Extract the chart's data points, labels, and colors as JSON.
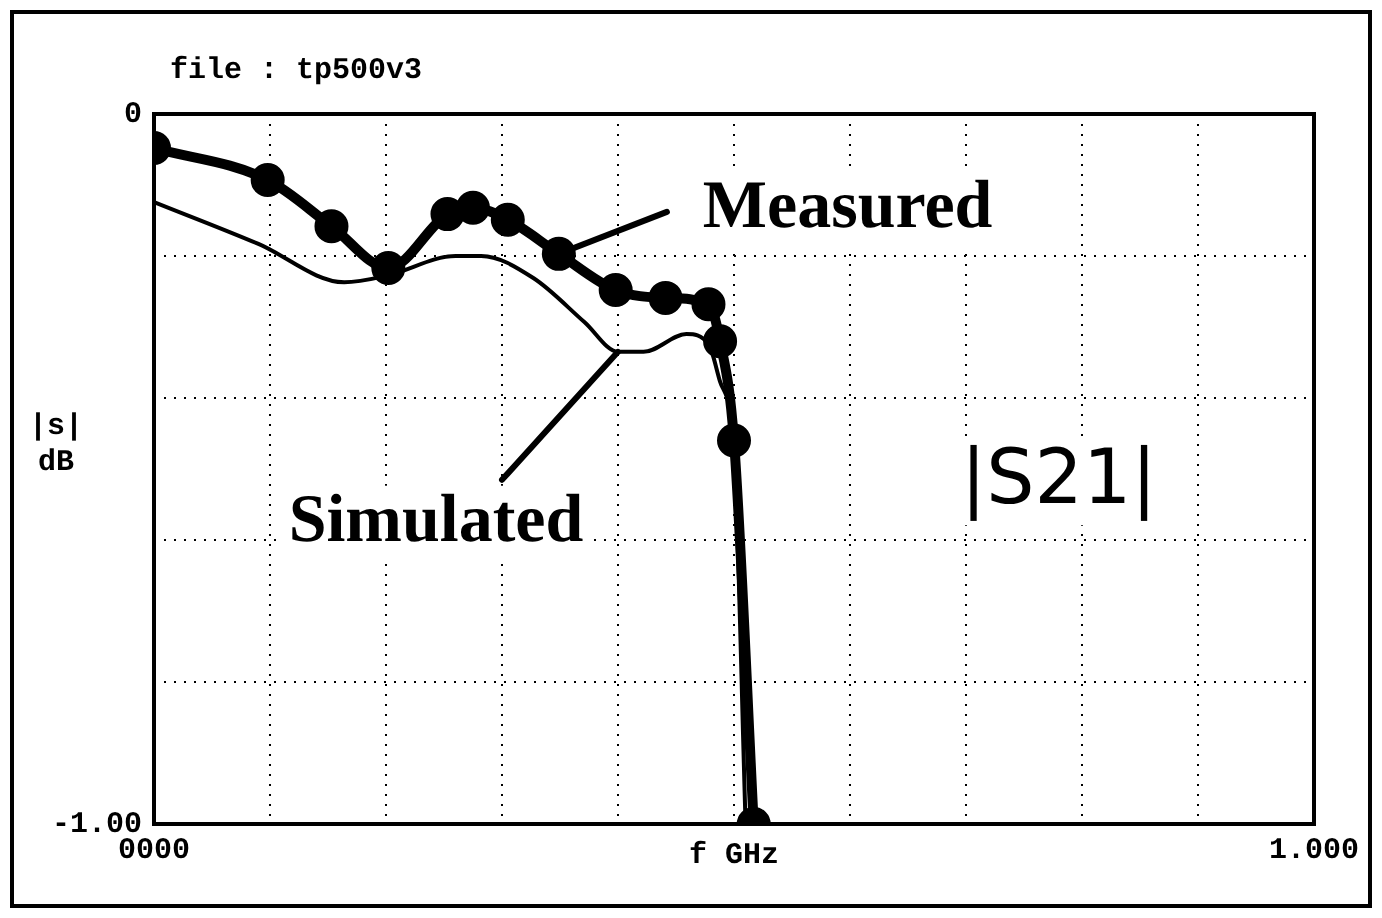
{
  "chart_data": {
    "type": "line",
    "title": "file : tp500v3",
    "xlabel": "f GHz",
    "ylabel": "|s| dB",
    "xlim": [
      0,
      1
    ],
    "xticks": [
      {
        "value": 0,
        "label": "0000"
      },
      {
        "value": 0.1,
        "label": null
      },
      {
        "value": 0.2,
        "label": null
      },
      {
        "value": 0.3,
        "label": null
      },
      {
        "value": 0.4,
        "label": null
      },
      {
        "value": 0.5,
        "label": null
      },
      {
        "value": 0.6,
        "label": null
      },
      {
        "value": 0.7,
        "label": null
      },
      {
        "value": 0.8,
        "label": null
      },
      {
        "value": 0.9,
        "label": null
      },
      {
        "value": 1,
        "label": "1.000"
      }
    ],
    "ylim": [
      -1,
      0
    ],
    "yticks": [
      {
        "value": -1,
        "label": "-1.00"
      },
      {
        "value": -0.8,
        "label": null
      },
      {
        "value": -0.6,
        "label": null
      },
      {
        "value": -0.4,
        "label": null
      },
      {
        "value": -0.2,
        "label": null
      },
      {
        "value": 0,
        "label": "0"
      }
    ],
    "grid": true,
    "series": [
      {
        "name": "Measured",
        "color": "#000000",
        "marker": "circle",
        "x": [
          0,
          0.098,
          0.153,
          0.202,
          0.253,
          0.275,
          0.305,
          0.349,
          0.398,
          0.441,
          0.478,
          0.488,
          0.5,
          0.517
        ],
        "values": [
          -0.048,
          -0.093,
          -0.158,
          -0.217,
          -0.141,
          -0.132,
          -0.149,
          -0.197,
          -0.248,
          -0.259,
          -0.268,
          -0.32,
          -0.46,
          -1.0
        ]
      },
      {
        "name": "Simulated",
        "color": "#000000",
        "marker": "none",
        "x": [
          0,
          0.09,
          0.164,
          0.2,
          0.26,
          0.282,
          0.327,
          0.371,
          0.4,
          0.422,
          0.459,
          0.478,
          0.488,
          0.5,
          0.51
        ],
        "values": [
          -0.124,
          -0.183,
          -0.237,
          -0.228,
          -0.2,
          -0.2,
          -0.231,
          -0.293,
          -0.335,
          -0.335,
          -0.31,
          -0.324,
          -0.377,
          -0.476,
          -1.0
        ]
      }
    ],
    "annotations": [
      "|S21|"
    ]
  }
}
